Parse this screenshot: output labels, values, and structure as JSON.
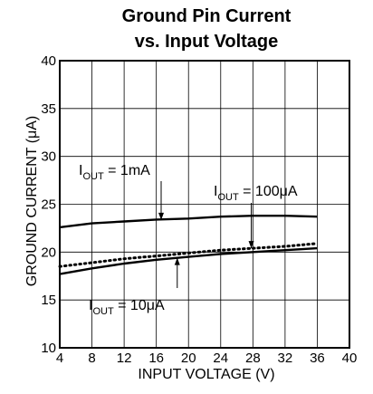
{
  "chart_data": {
    "type": "line",
    "title_line1": "Ground Pin Current",
    "title_line2": "vs. Input Voltage",
    "xlabel": "INPUT  VOLTAGE (V)",
    "ylabel": "GROUND CURRENT (μA)",
    "xlim": [
      4,
      40
    ],
    "ylim": [
      10,
      40
    ],
    "xticks": [
      4,
      8,
      12,
      16,
      20,
      24,
      28,
      32,
      36,
      40
    ],
    "yticks": [
      10,
      15,
      20,
      25,
      30,
      35,
      40
    ],
    "grid": true,
    "series": [
      {
        "name": "IOUT = 1mA",
        "style": "solid",
        "x": [
          4,
          8,
          12,
          16,
          20,
          24,
          28,
          32,
          36
        ],
        "y": [
          22.6,
          23.0,
          23.2,
          23.4,
          23.5,
          23.7,
          23.8,
          23.8,
          23.7
        ]
      },
      {
        "name": "IOUT = 100μA",
        "style": "dotted",
        "x": [
          4,
          8,
          12,
          16,
          20,
          24,
          28,
          32,
          36
        ],
        "y": [
          18.5,
          18.9,
          19.3,
          19.6,
          19.9,
          20.2,
          20.4,
          20.6,
          20.9
        ]
      },
      {
        "name": "IOUT = 10μA",
        "style": "solid",
        "x": [
          4,
          8,
          12,
          16,
          20,
          24,
          28,
          32,
          36
        ],
        "y": [
          17.7,
          18.3,
          18.8,
          19.2,
          19.5,
          19.8,
          20.0,
          20.2,
          20.4
        ]
      }
    ],
    "annotations": [
      {
        "main": "I",
        "sub": "OUT",
        "rest": " = 1mA",
        "series": 0
      },
      {
        "main": "I",
        "sub": "OUT",
        "rest": " = 100μA",
        "series": 1
      },
      {
        "main": "I",
        "sub": "OUT",
        "rest": " = 10μA",
        "series": 2
      }
    ],
    "colors": {
      "line": "#000000",
      "background": "#ffffff"
    }
  }
}
